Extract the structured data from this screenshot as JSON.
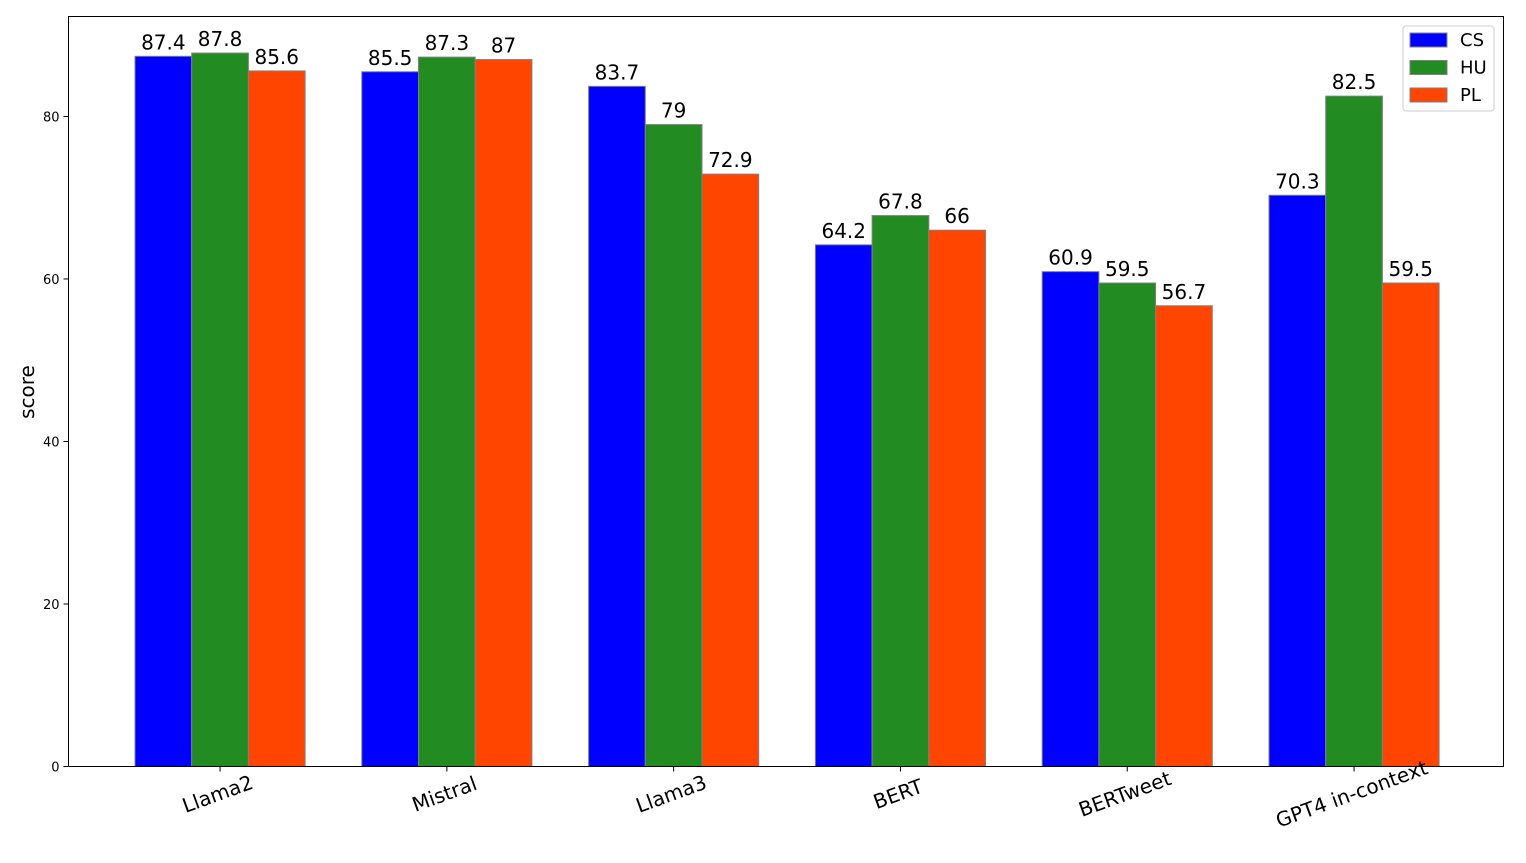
{
  "chart_data": {
    "type": "bar",
    "title": "",
    "xlabel": "",
    "ylabel": "score",
    "ylim": [
      0,
      92.3
    ],
    "yticks": [
      0,
      20,
      40,
      60,
      80
    ],
    "grid": false,
    "legend_position": "top-right",
    "categories": [
      "Llama2",
      "Mistral",
      "Llama3",
      "BERT",
      "BERTweet",
      "GPT4 in-context"
    ],
    "series": [
      {
        "name": "CS",
        "color": "#0000ff",
        "values": [
          87.4,
          85.5,
          83.7,
          64.2,
          60.9,
          70.3
        ],
        "labels": [
          "87.4",
          "85.5",
          "83.7",
          "64.2",
          "60.9",
          "70.3"
        ]
      },
      {
        "name": "HU",
        "color": "#228b22",
        "values": [
          87.8,
          87.3,
          79,
          67.8,
          59.5,
          82.5
        ],
        "labels": [
          "87.8",
          "87.3",
          "79",
          "67.8",
          "59.5",
          "82.5"
        ]
      },
      {
        "name": "PL",
        "color": "#ff4500",
        "values": [
          85.6,
          87,
          72.9,
          66,
          56.7,
          59.5
        ],
        "labels": [
          "85.6",
          "87",
          "72.9",
          "66",
          "56.7",
          "59.5"
        ]
      }
    ],
    "bar_edge_color": "#808080"
  }
}
